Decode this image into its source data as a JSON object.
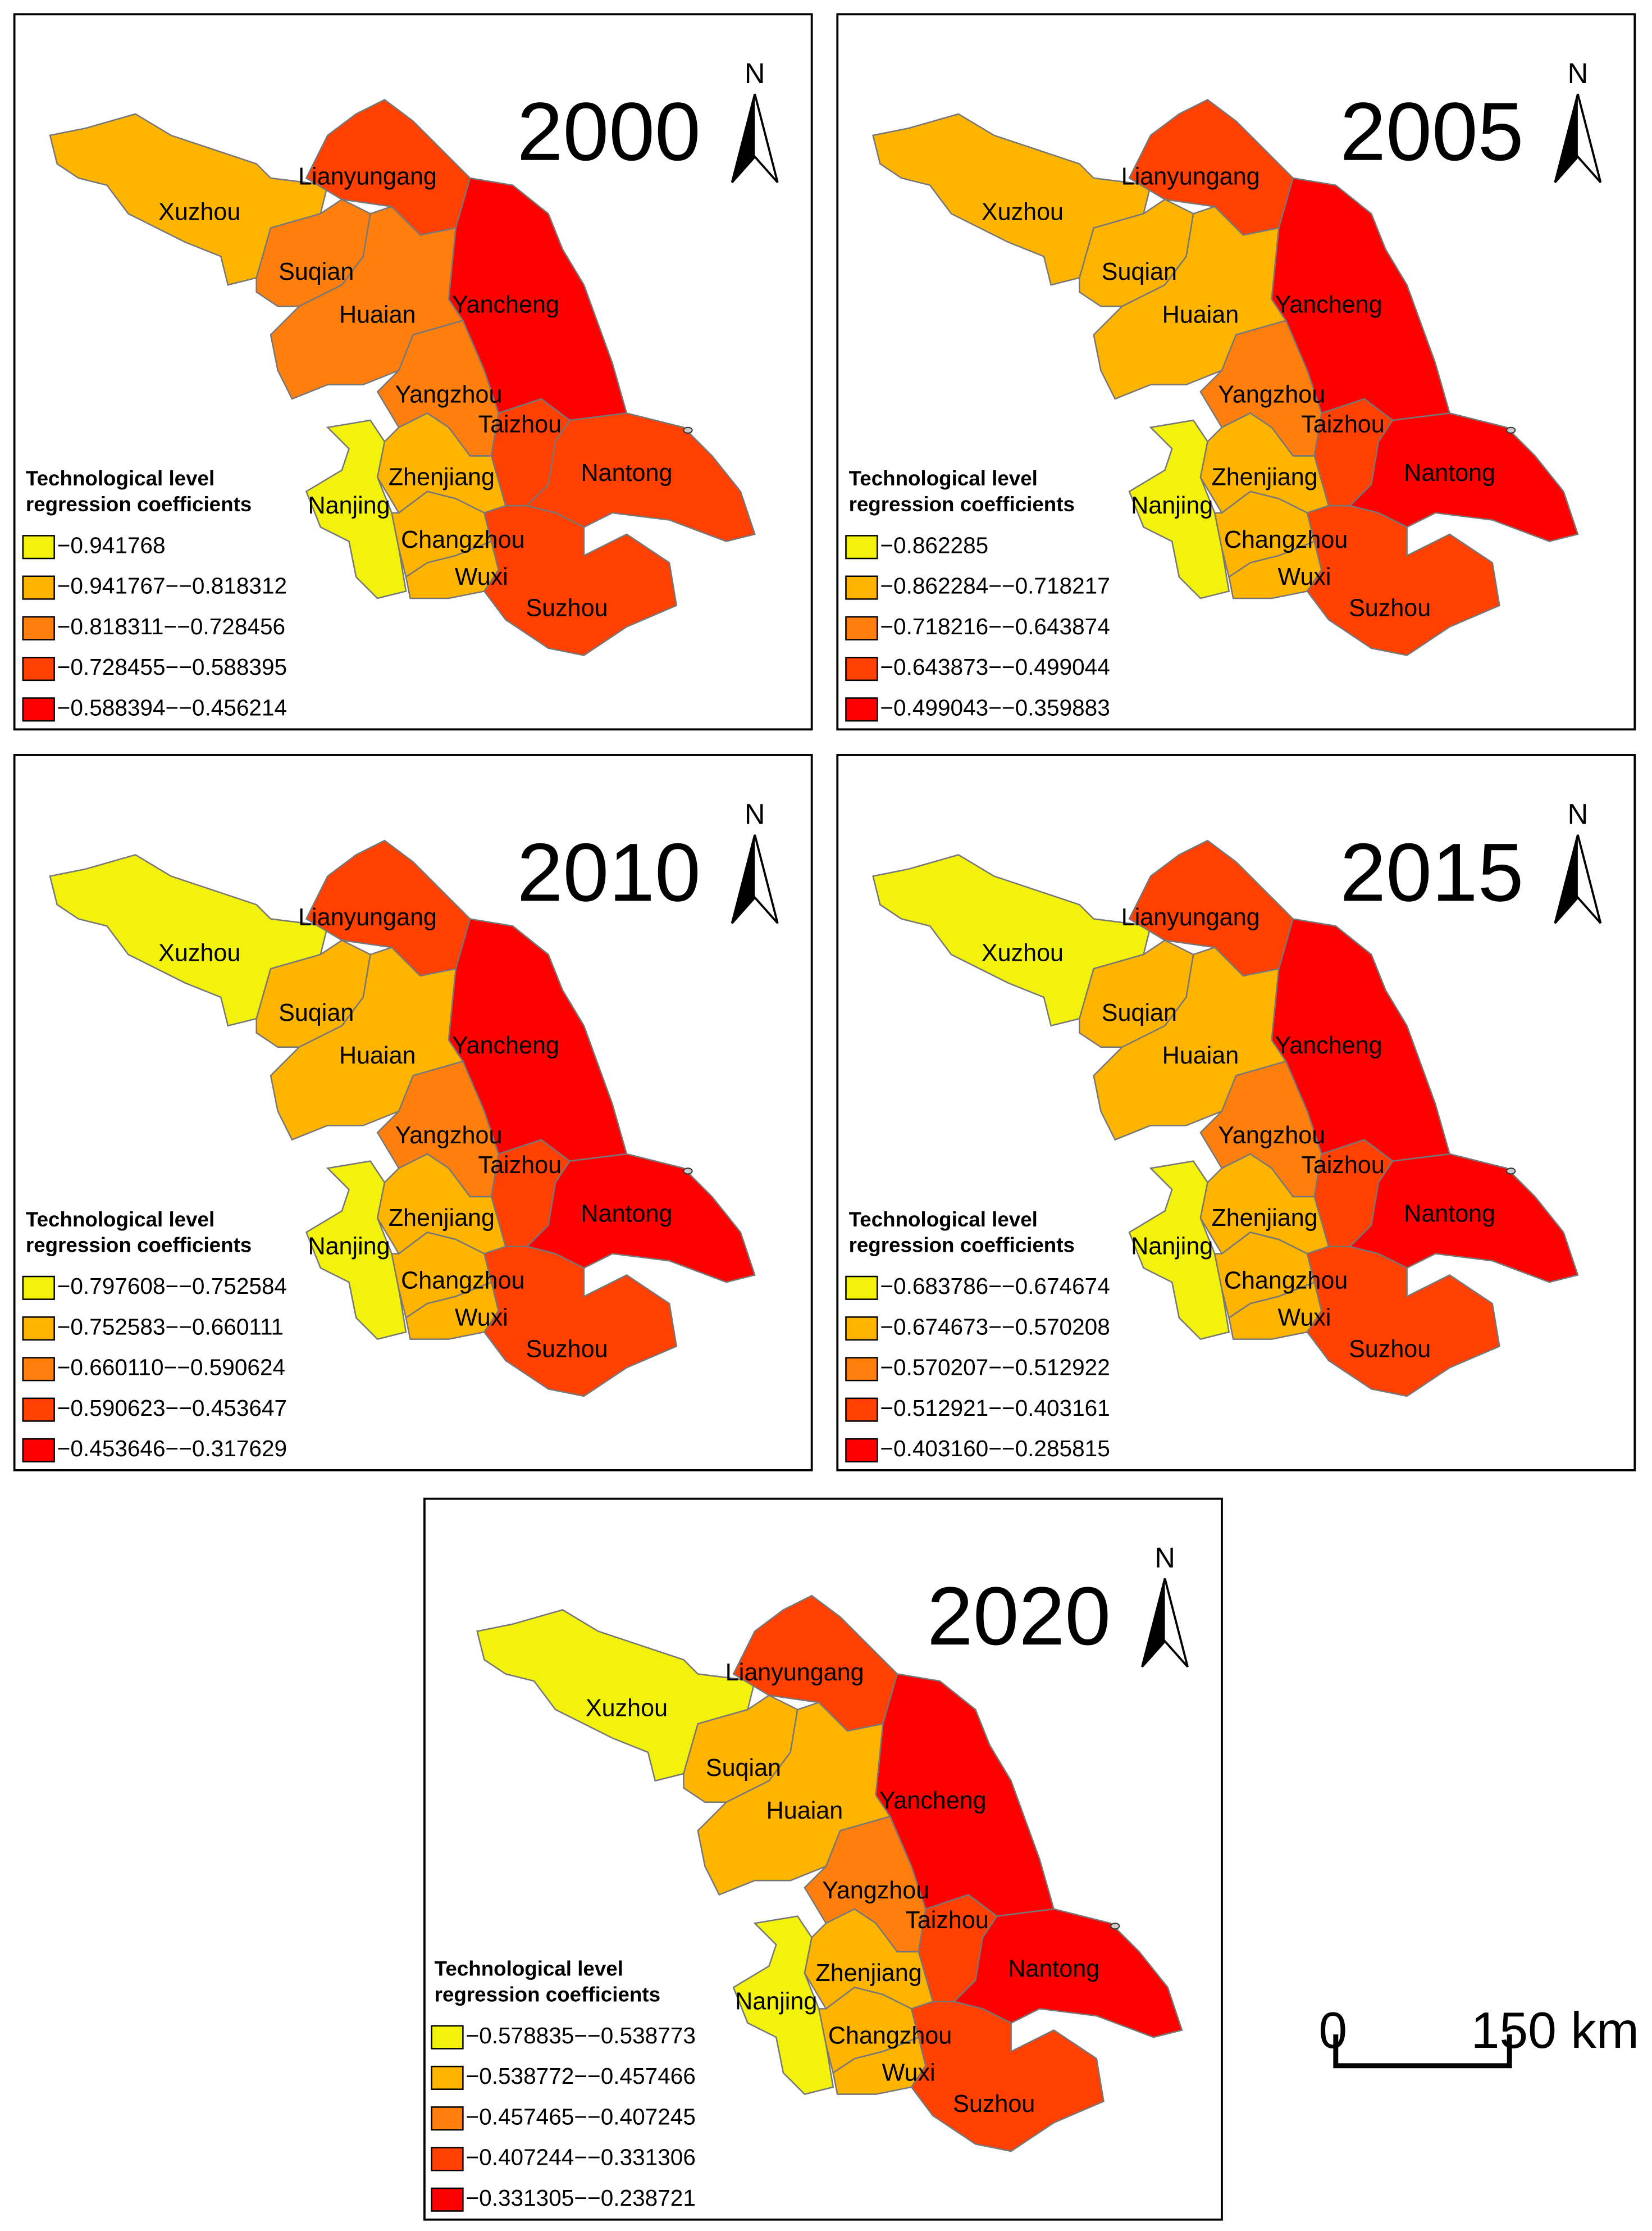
{
  "panels": [
    {
      "year": "2000",
      "north_label": "N",
      "legend_title": [
        "Technological level",
        "regression coefficients"
      ],
      "legend": [
        {
          "label": "−0.941768",
          "color": "#f2f20c"
        },
        {
          "label": "−0.941767−−0.818312",
          "color": "#ffb400"
        },
        {
          "label": "−0.818311−−0.728456",
          "color": "#ff7f0e"
        },
        {
          "label": "−0.728455−−0.588395",
          "color": "#ff4000"
        },
        {
          "label": "−0.588394−−0.456214",
          "color": "#ff0000"
        }
      ],
      "regions": [
        {
          "name": "Xuzhou",
          "color": "#ffb400"
        },
        {
          "name": "Lianyungang",
          "color": "#ff4000"
        },
        {
          "name": "Suqian",
          "color": "#ff7f0e"
        },
        {
          "name": "Huaian",
          "color": "#ff7f0e"
        },
        {
          "name": "Yancheng",
          "color": "#ff0000"
        },
        {
          "name": "Yangzhou",
          "color": "#ff7f0e"
        },
        {
          "name": "Taizhou",
          "color": "#ff4000"
        },
        {
          "name": "Nantong",
          "color": "#ff4000"
        },
        {
          "name": "Nanjing",
          "color": "#f2f20c"
        },
        {
          "name": "Zhenjiang",
          "color": "#ffb400"
        },
        {
          "name": "Changzhou",
          "color": "#ffb400"
        },
        {
          "name": "Wuxi",
          "color": "#ffb400"
        },
        {
          "name": "Suzhou",
          "color": "#ff4000"
        }
      ]
    },
    {
      "year": "2005",
      "north_label": "N",
      "legend_title": [
        "Technological level",
        "regression coefficients"
      ],
      "legend": [
        {
          "label": "−0.862285",
          "color": "#f2f20c"
        },
        {
          "label": "−0.862284−−0.718217",
          "color": "#ffb400"
        },
        {
          "label": "−0.718216−−0.643874",
          "color": "#ff7f0e"
        },
        {
          "label": "−0.643873−−0.499044",
          "color": "#ff4000"
        },
        {
          "label": "−0.499043−−0.359883",
          "color": "#ff0000"
        }
      ],
      "regions": [
        {
          "name": "Xuzhou",
          "color": "#ffb400"
        },
        {
          "name": "Lianyungang",
          "color": "#ff4000"
        },
        {
          "name": "Suqian",
          "color": "#ffb400"
        },
        {
          "name": "Huaian",
          "color": "#ffb400"
        },
        {
          "name": "Yancheng",
          "color": "#ff0000"
        },
        {
          "name": "Yangzhou",
          "color": "#ff7f0e"
        },
        {
          "name": "Taizhou",
          "color": "#ff4000"
        },
        {
          "name": "Nantong",
          "color": "#ff0000"
        },
        {
          "name": "Nanjing",
          "color": "#f2f20c"
        },
        {
          "name": "Zhenjiang",
          "color": "#ffb400"
        },
        {
          "name": "Changzhou",
          "color": "#ffb400"
        },
        {
          "name": "Wuxi",
          "color": "#ffb400"
        },
        {
          "name": "Suzhou",
          "color": "#ff4000"
        }
      ]
    },
    {
      "year": "2010",
      "north_label": "N",
      "legend_title": [
        "Technological level",
        "regression coefficients"
      ],
      "legend": [
        {
          "label": "−0.797608−−0.752584",
          "color": "#f2f20c"
        },
        {
          "label": "−0.752583−−0.660111",
          "color": "#ffb400"
        },
        {
          "label": "−0.660110−−0.590624",
          "color": "#ff7f0e"
        },
        {
          "label": "−0.590623−−0.453647",
          "color": "#ff4000"
        },
        {
          "label": "−0.453646−−0.317629",
          "color": "#ff0000"
        }
      ],
      "regions": [
        {
          "name": "Xuzhou",
          "color": "#f2f20c"
        },
        {
          "name": "Lianyungang",
          "color": "#ff4000"
        },
        {
          "name": "Suqian",
          "color": "#ffb400"
        },
        {
          "name": "Huaian",
          "color": "#ffb400"
        },
        {
          "name": "Yancheng",
          "color": "#ff0000"
        },
        {
          "name": "Yangzhou",
          "color": "#ff7f0e"
        },
        {
          "name": "Taizhou",
          "color": "#ff4000"
        },
        {
          "name": "Nantong",
          "color": "#ff0000"
        },
        {
          "name": "Nanjing",
          "color": "#f2f20c"
        },
        {
          "name": "Zhenjiang",
          "color": "#ffb400"
        },
        {
          "name": "Changzhou",
          "color": "#ffb400"
        },
        {
          "name": "Wuxi",
          "color": "#ffb400"
        },
        {
          "name": "Suzhou",
          "color": "#ff4000"
        }
      ]
    },
    {
      "year": "2015",
      "north_label": "N",
      "legend_title": [
        "Technological level",
        "regression coefficients"
      ],
      "legend": [
        {
          "label": "−0.683786−−0.674674",
          "color": "#f2f20c"
        },
        {
          "label": "−0.674673−−0.570208",
          "color": "#ffb400"
        },
        {
          "label": "−0.570207−−0.512922",
          "color": "#ff7f0e"
        },
        {
          "label": "−0.512921−−0.403161",
          "color": "#ff4000"
        },
        {
          "label": "−0.403160−−0.285815",
          "color": "#ff0000"
        }
      ],
      "regions": [
        {
          "name": "Xuzhou",
          "color": "#f2f20c"
        },
        {
          "name": "Lianyungang",
          "color": "#ff4000"
        },
        {
          "name": "Suqian",
          "color": "#ffb400"
        },
        {
          "name": "Huaian",
          "color": "#ffb400"
        },
        {
          "name": "Yancheng",
          "color": "#ff0000"
        },
        {
          "name": "Yangzhou",
          "color": "#ff7f0e"
        },
        {
          "name": "Taizhou",
          "color": "#ff4000"
        },
        {
          "name": "Nantong",
          "color": "#ff0000"
        },
        {
          "name": "Nanjing",
          "color": "#f2f20c"
        },
        {
          "name": "Zhenjiang",
          "color": "#ffb400"
        },
        {
          "name": "Changzhou",
          "color": "#ffb400"
        },
        {
          "name": "Wuxi",
          "color": "#ffb400"
        },
        {
          "name": "Suzhou",
          "color": "#ff4000"
        }
      ]
    },
    {
      "year": "2020",
      "north_label": "N",
      "legend_title": [
        "Technological level",
        "regression coefficients"
      ],
      "legend": [
        {
          "label": "−0.578835−−0.538773",
          "color": "#f2f20c"
        },
        {
          "label": "−0.538772−−0.457466",
          "color": "#ffb400"
        },
        {
          "label": "−0.457465−−0.407245",
          "color": "#ff7f0e"
        },
        {
          "label": "−0.407244−−0.331306",
          "color": "#ff4000"
        },
        {
          "label": "−0.331305−−0.238721",
          "color": "#ff0000"
        }
      ],
      "regions": [
        {
          "name": "Xuzhou",
          "color": "#f2f20c"
        },
        {
          "name": "Lianyungang",
          "color": "#ff4000"
        },
        {
          "name": "Suqian",
          "color": "#ffb400"
        },
        {
          "name": "Huaian",
          "color": "#ffb400"
        },
        {
          "name": "Yancheng",
          "color": "#ff0000"
        },
        {
          "name": "Yangzhou",
          "color": "#ff7f0e"
        },
        {
          "name": "Taizhou",
          "color": "#ff4000"
        },
        {
          "name": "Nantong",
          "color": "#ff0000"
        },
        {
          "name": "Nanjing",
          "color": "#f2f20c"
        },
        {
          "name": "Zhenjiang",
          "color": "#ffb400"
        },
        {
          "name": "Changzhou",
          "color": "#ffb400"
        },
        {
          "name": "Wuxi",
          "color": "#ffb400"
        },
        {
          "name": "Suzhou",
          "color": "#ff4000"
        }
      ]
    }
  ],
  "scale_bar": {
    "start": "0",
    "end": "150 km"
  }
}
